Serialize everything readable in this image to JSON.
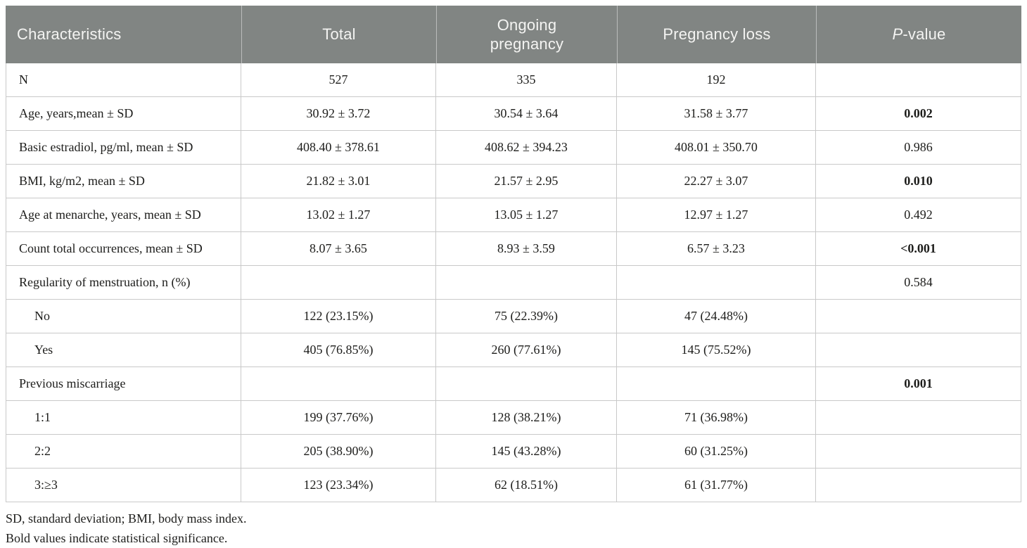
{
  "colors": {
    "header_bg": "#818583",
    "header_text": "#f4f4f2",
    "border": "#c9c9c9",
    "body_text": "#1d1d1b"
  },
  "table": {
    "header": {
      "characteristics": "Characteristics",
      "total": "Total",
      "ongoing": "Ongoing pregnancy",
      "loss": "Pregnancy loss",
      "p_italic": "P",
      "p_rest": "-value"
    },
    "rows": [
      {
        "label": "N",
        "indent": false,
        "total": "527",
        "ongoing": "335",
        "loss": "192",
        "p": "",
        "p_bold": false
      },
      {
        "label": "Age, years,mean ± SD",
        "indent": false,
        "total": "30.92 ± 3.72",
        "ongoing": "30.54 ± 3.64",
        "loss": "31.58 ± 3.77",
        "p": "0.002",
        "p_bold": true
      },
      {
        "label": "Basic estradiol, pg/ml, mean ± SD",
        "indent": false,
        "total": "408.40 ± 378.61",
        "ongoing": "408.62 ± 394.23",
        "loss": "408.01 ± 350.70",
        "p": "0.986",
        "p_bold": false
      },
      {
        "label": "BMI, kg/m2, mean ± SD",
        "indent": false,
        "total": "21.82 ± 3.01",
        "ongoing": "21.57 ± 2.95",
        "loss": "22.27 ± 3.07",
        "p": "0.010",
        "p_bold": true
      },
      {
        "label": "Age at menarche, years, mean ± SD",
        "indent": false,
        "total": "13.02 ± 1.27",
        "ongoing": "13.05 ± 1.27",
        "loss": "12.97 ± 1.27",
        "p": "0.492",
        "p_bold": false
      },
      {
        "label": "Count total occurrences, mean ± SD",
        "indent": false,
        "total": "8.07 ± 3.65",
        "ongoing": "8.93 ± 3.59",
        "loss": "6.57 ± 3.23",
        "p": "<0.001",
        "p_bold": true
      },
      {
        "label": "Regularity of menstruation, n (%)",
        "indent": false,
        "total": "",
        "ongoing": "",
        "loss": "",
        "p": "0.584",
        "p_bold": false
      },
      {
        "label": "No",
        "indent": true,
        "total": "122 (23.15%)",
        "ongoing": "75 (22.39%)",
        "loss": "47 (24.48%)",
        "p": "",
        "p_bold": false
      },
      {
        "label": "Yes",
        "indent": true,
        "total": "405 (76.85%)",
        "ongoing": "260 (77.61%)",
        "loss": "145 (75.52%)",
        "p": "",
        "p_bold": false
      },
      {
        "label": "Previous miscarriage",
        "indent": false,
        "total": "",
        "ongoing": "",
        "loss": "",
        "p": "0.001",
        "p_bold": true
      },
      {
        "label": "1:1",
        "indent": true,
        "total": "199 (37.76%)",
        "ongoing": "128 (38.21%)",
        "loss": "71 (36.98%)",
        "p": "",
        "p_bold": false
      },
      {
        "label": "2:2",
        "indent": true,
        "total": "205 (38.90%)",
        "ongoing": "145 (43.28%)",
        "loss": "60 (31.25%)",
        "p": "",
        "p_bold": false
      },
      {
        "label": "3:≥3",
        "indent": true,
        "total": "123 (23.34%)",
        "ongoing": "62 (18.51%)",
        "loss": "61 (31.77%)",
        "p": "",
        "p_bold": false
      }
    ]
  },
  "footnotes": [
    "SD, standard deviation; BMI, body mass index.",
    "Bold values indicate statistical significance."
  ]
}
